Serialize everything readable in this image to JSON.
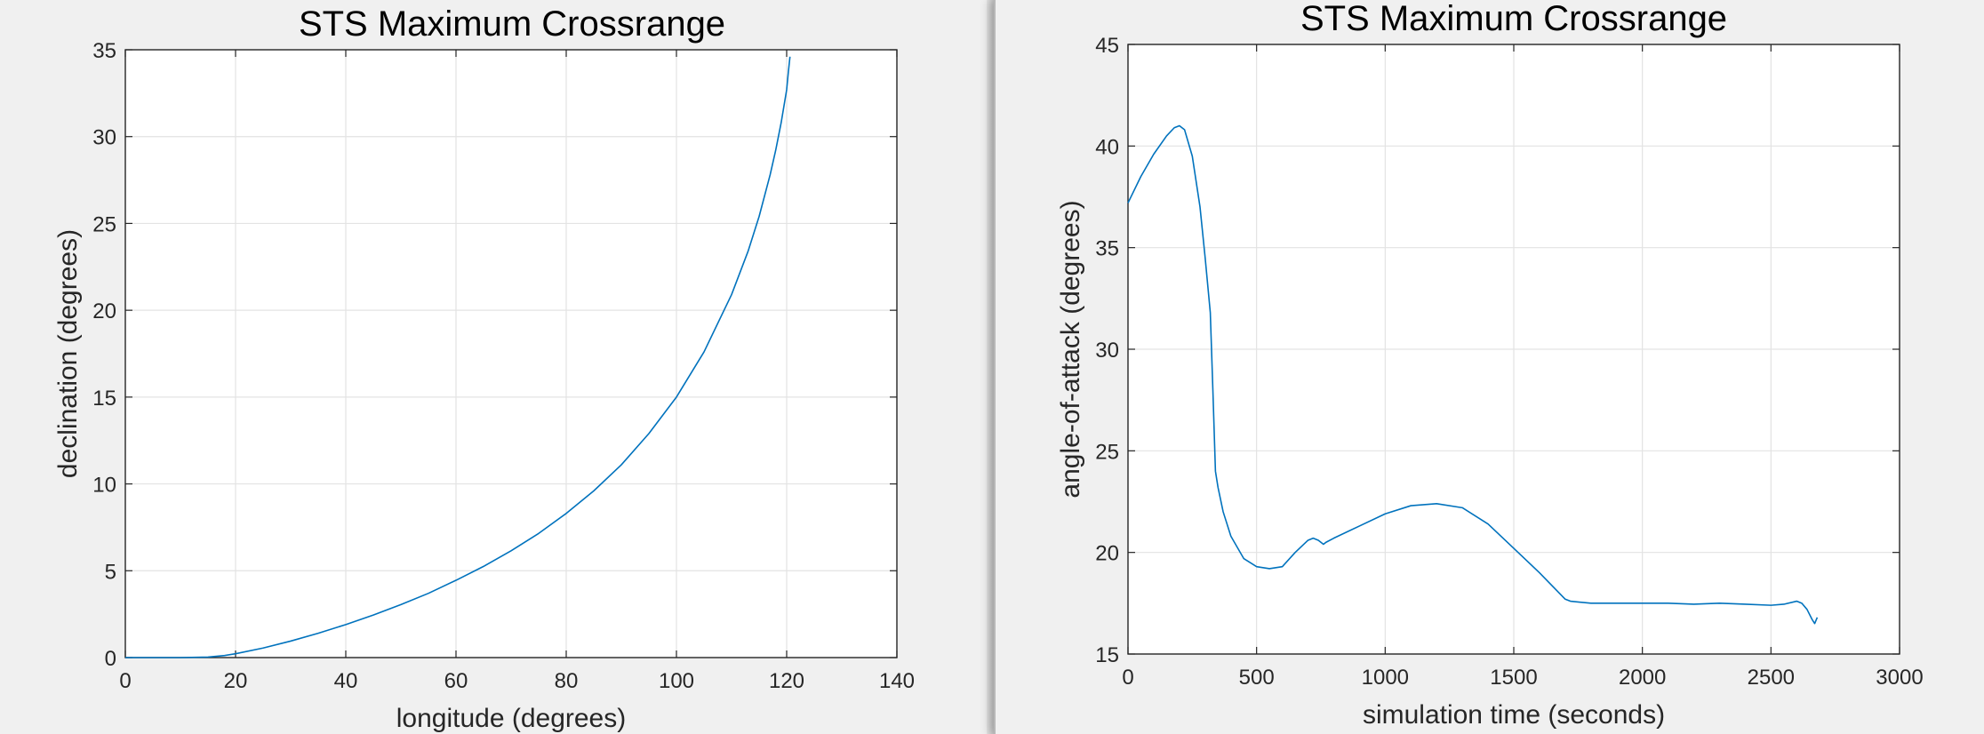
{
  "chart_data": [
    {
      "type": "line",
      "title": "STS Maximum Crossrange",
      "xlabel": "longitude (degrees)",
      "ylabel": "declination (degrees)",
      "xlim": [
        0,
        140
      ],
      "ylim": [
        0,
        35
      ],
      "xticks": [
        0,
        20,
        40,
        60,
        80,
        100,
        120,
        140
      ],
      "yticks": [
        0,
        5,
        10,
        15,
        20,
        25,
        30,
        35
      ],
      "grid": true,
      "color": "#0072BD",
      "series": [
        {
          "x": [
            0,
            5,
            10,
            15,
            18,
            20,
            25,
            30,
            35,
            40,
            45,
            50,
            55,
            60,
            65,
            70,
            75,
            80,
            85,
            90,
            95,
            100,
            105,
            110,
            113,
            115,
            117,
            118,
            119,
            120,
            120.3,
            120.6
          ],
          "y": [
            0,
            0,
            0,
            0.03,
            0.12,
            0.22,
            0.55,
            0.95,
            1.4,
            1.9,
            2.45,
            3.05,
            3.7,
            4.45,
            5.25,
            6.15,
            7.15,
            8.3,
            9.6,
            11.1,
            12.9,
            15.0,
            17.6,
            20.9,
            23.4,
            25.4,
            27.8,
            29.2,
            30.8,
            32.7,
            33.7,
            34.6
          ]
        }
      ]
    },
    {
      "type": "line",
      "title": "STS Maximum Crossrange",
      "xlabel": "simulation time (seconds)",
      "ylabel": "angle-of-attack (degrees)",
      "xlim": [
        0,
        3000
      ],
      "ylim": [
        15,
        45
      ],
      "xticks": [
        0,
        500,
        1000,
        1500,
        2000,
        2500,
        3000
      ],
      "yticks": [
        15,
        20,
        25,
        30,
        35,
        40,
        45
      ],
      "grid": true,
      "color": "#0072BD",
      "series": [
        {
          "x": [
            0,
            50,
            100,
            150,
            180,
            200,
            220,
            250,
            280,
            300,
            320,
            330,
            340,
            350,
            370,
            400,
            450,
            500,
            550,
            600,
            650,
            700,
            720,
            740,
            760,
            770,
            800,
            900,
            1000,
            1100,
            1200,
            1300,
            1400,
            1500,
            1600,
            1700,
            1720,
            1800,
            1900,
            2000,
            2100,
            2200,
            2300,
            2400,
            2500,
            2550,
            2600,
            2620,
            2640,
            2660,
            2670,
            2680
          ],
          "y": [
            37.2,
            38.5,
            39.6,
            40.5,
            40.9,
            41.0,
            40.8,
            39.5,
            37.0,
            34.5,
            31.8,
            28.0,
            24.0,
            23.2,
            22.0,
            20.8,
            19.7,
            19.3,
            19.2,
            19.3,
            20.0,
            20.6,
            20.7,
            20.6,
            20.4,
            20.5,
            20.7,
            21.3,
            21.9,
            22.3,
            22.4,
            22.2,
            21.4,
            20.2,
            19.0,
            17.7,
            17.6,
            17.5,
            17.5,
            17.5,
            17.5,
            17.45,
            17.5,
            17.45,
            17.4,
            17.45,
            17.6,
            17.5,
            17.2,
            16.7,
            16.5,
            16.8
          ]
        }
      ]
    }
  ]
}
